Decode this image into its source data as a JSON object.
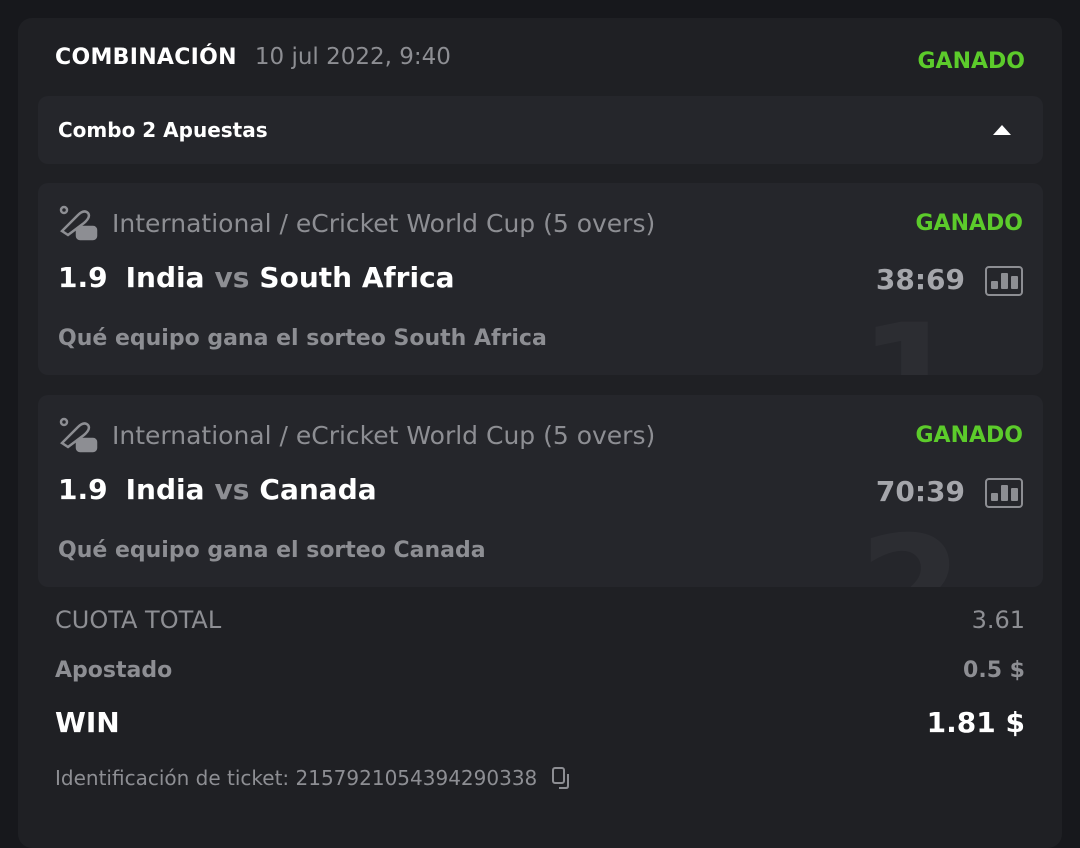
{
  "header": {
    "title": "COMBINACIÓN",
    "date": "10 jul 2022, 9:40",
    "status": "GANADO"
  },
  "combo": {
    "label": "Combo 2 Apuestas"
  },
  "selections": [
    {
      "index": "1",
      "league": "International / eCricket World Cup (5 overs)",
      "status": "GANADO",
      "odd": "1.9",
      "home": "India",
      "vs": "vs",
      "away": "South Africa",
      "score": "38:69",
      "market": "Qué equipo gana el sorteo South Africa"
    },
    {
      "index": "2",
      "league": "International / eCricket World Cup (5 overs)",
      "status": "GANADO",
      "odd": "1.9",
      "home": "India",
      "vs": "vs",
      "away": "Canada",
      "score": "70:39",
      "market": "Qué equipo gana el sorteo Canada"
    }
  ],
  "summary": {
    "total_odds_label": "CUOTA TOTAL",
    "total_odds": "3.61",
    "stake_label": "Apostado",
    "stake": "0.5 $",
    "win_label": "WIN",
    "win": "1.81 $"
  },
  "ticket": {
    "label": "Identificación de ticket: 2157921054394290338"
  },
  "colors": {
    "accent": "#5ccb2b",
    "background": "#1f2024",
    "panel": "#25262b"
  }
}
